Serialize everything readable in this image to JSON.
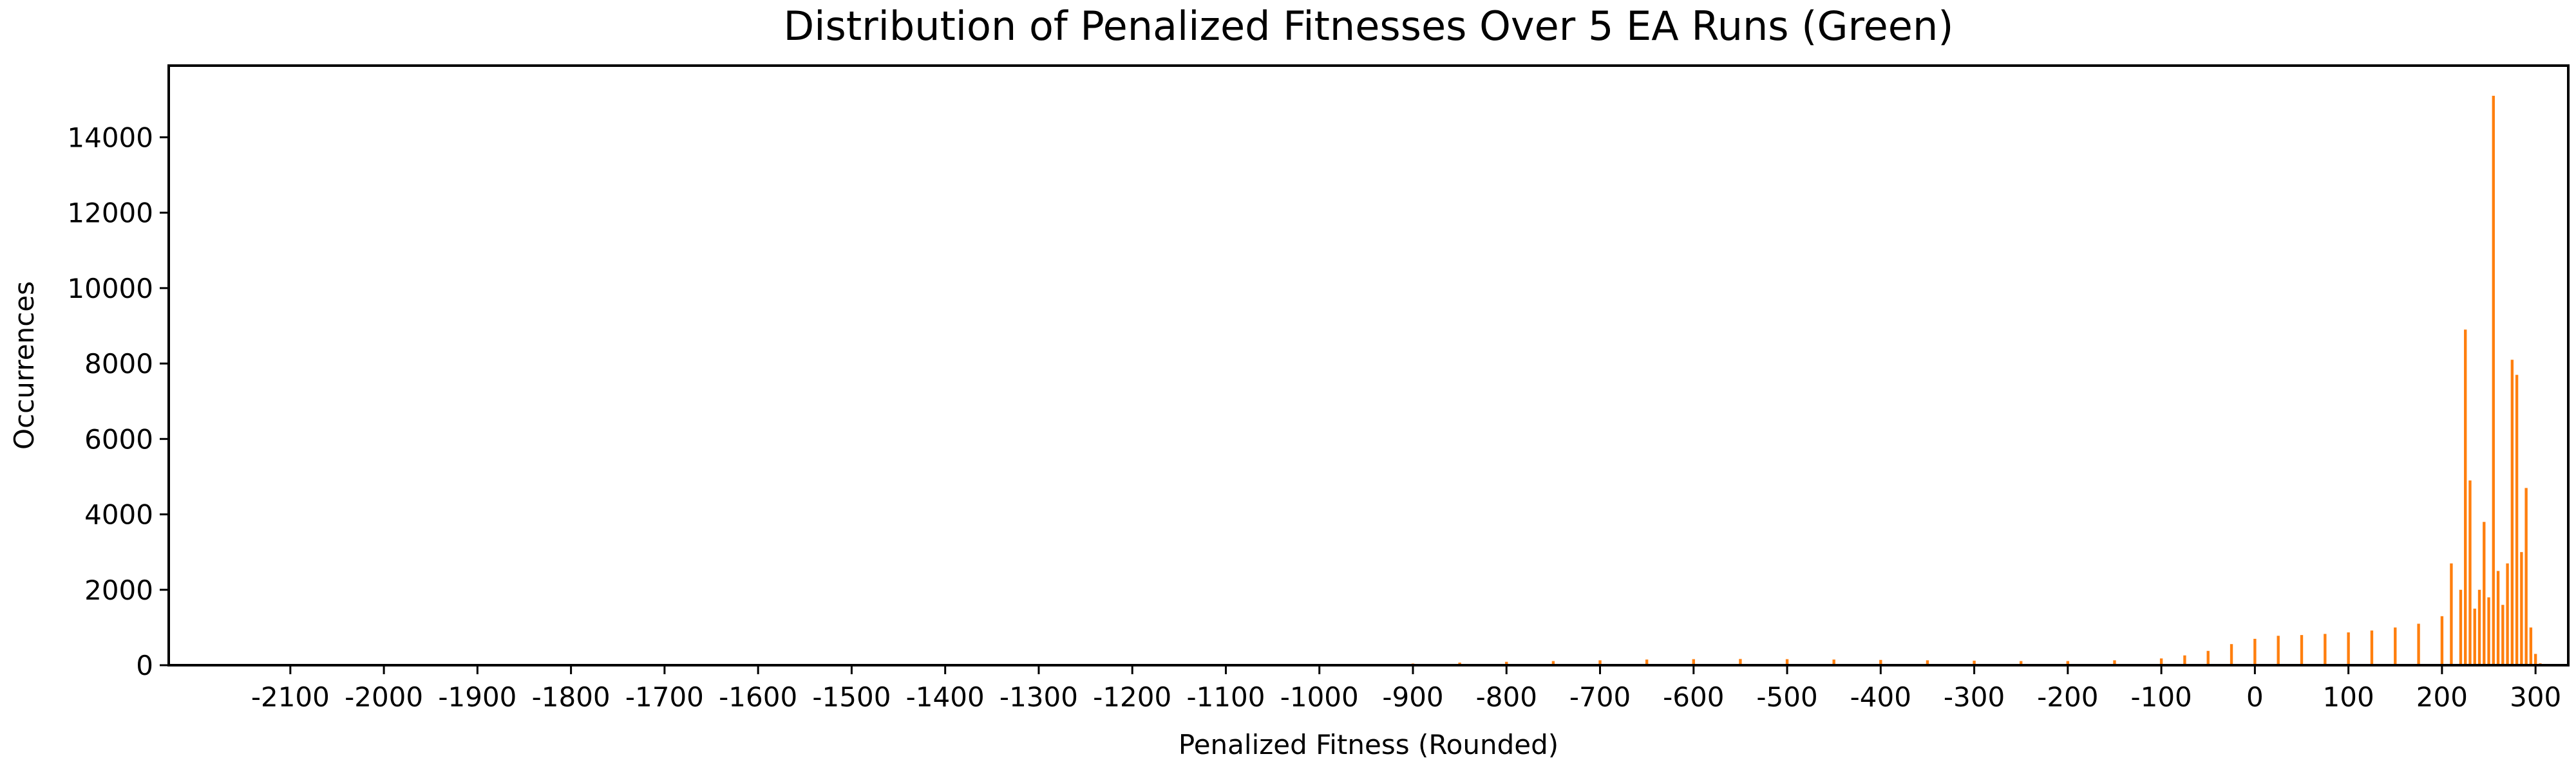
{
  "chart_data": {
    "type": "bar",
    "title": "Distribution of Penalized Fitnesses Over 5 EA Runs (Green)",
    "xlabel": "Penalized Fitness (Rounded)",
    "ylabel": "Occurrences",
    "xlim": [
      -2230,
      335
    ],
    "ylim": [
      0,
      15900
    ],
    "x_ticks": [
      -2100,
      -2000,
      -1900,
      -1800,
      -1700,
      -1600,
      -1500,
      -1400,
      -1300,
      -1200,
      -1100,
      -1000,
      -900,
      -800,
      -700,
      -600,
      -500,
      -400,
      -300,
      -200,
      -100,
      0,
      100,
      200,
      300
    ],
    "y_ticks": [
      0,
      2000,
      4000,
      6000,
      8000,
      10000,
      12000,
      14000
    ],
    "grid": false,
    "legend": "none",
    "color": "#ff7f0e",
    "series": [
      {
        "x": [
          -1000,
          -950,
          -900,
          -850,
          -800,
          -750,
          -700,
          -650,
          -600,
          -550,
          -500,
          -450,
          -400,
          -350,
          -300,
          -250,
          -200,
          -150,
          -100,
          -75,
          -50,
          -25,
          0,
          25,
          50,
          75,
          100,
          125,
          150,
          175,
          200,
          210,
          220,
          225,
          230,
          235,
          240,
          245,
          250,
          255,
          260,
          265,
          270,
          275,
          280,
          285,
          290,
          295,
          300,
          305
        ],
        "values": [
          10,
          25,
          45,
          70,
          90,
          110,
          130,
          150,
          160,
          165,
          160,
          150,
          140,
          130,
          120,
          110,
          110,
          130,
          180,
          260,
          380,
          560,
          700,
          780,
          800,
          830,
          870,
          920,
          1000,
          1100,
          1300,
          2700,
          2000,
          8900,
          4900,
          1500,
          2000,
          3800,
          1800,
          15100,
          2500,
          1600,
          2700,
          8100,
          7700,
          3000,
          4700,
          1000,
          300,
          50
        ]
      }
    ]
  }
}
